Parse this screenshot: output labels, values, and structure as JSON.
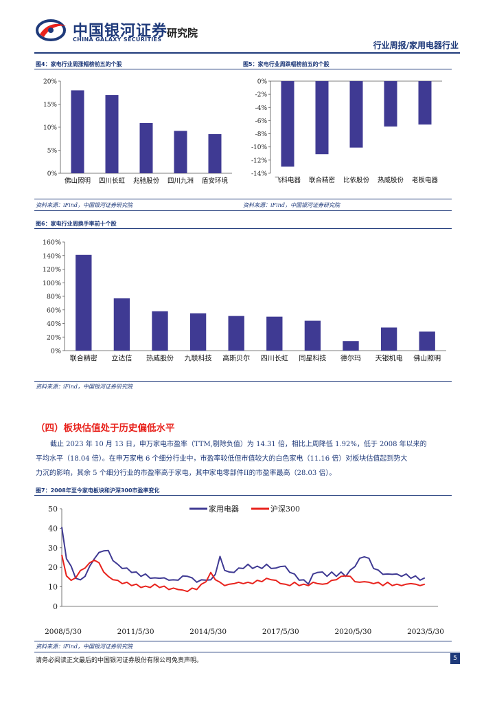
{
  "header": {
    "brand_cn": "中国银河证券",
    "brand_en": "CHINA GALAXY SECURITIES",
    "institute": "研究院",
    "report_type": "行业周报/家用电器行业"
  },
  "figures": {
    "fig4": {
      "title": "图4：家电行业周涨幅榜前五的个股",
      "source": "资料来源：iFind，中国银河证券研究院"
    },
    "fig5": {
      "title": "图5：家电行业周跌幅榜前五的个股",
      "source": "资料来源：iFind，中国银河证券研究院"
    },
    "fig6": {
      "title": "图6：家电行业周换手率前十个股",
      "source": "资料来源：iFind，中国银河证券研究院"
    },
    "fig7": {
      "title": "图7：2008年至今家电板块和沪深300市盈率变化",
      "source": "资料来源：iFind，中国银河证券研究院"
    }
  },
  "section": {
    "heading": "（四）板块估值处于历史偏低水平",
    "para_lines": [
      "截止 2023 年 10 月 13 日，申万家电市盈率（TTM,剔除负值）为 14.31 倍，相比上周降低 1.92%，低于 2008 年以来的",
      "平均水平（18.04 倍）。在申万家电 6 个细分行业中，市盈率较低但市值较大的白色家电（11.16 倍）对板块估值起到势大",
      "力沉的影响，其余 5 个细分行业的市盈率高于家电，其中家电零部件II的市盈率最高（28.03 倍）。"
    ]
  },
  "footer": {
    "disclaimer": "请务必阅读正文最后的中国银河证券股份有限公司免责声明。",
    "page_number": "5"
  },
  "colors": {
    "bar": "#3f3a93",
    "line_home": "#3f3a93",
    "line_hs300": "#e8221c",
    "accent": "#1f3a7a"
  },
  "chart_data": [
    {
      "id": "fig4",
      "type": "bar",
      "categories": [
        "佛山照明",
        "四川长虹",
        "兆驰股份",
        "四川九洲",
        "盾安环境"
      ],
      "values": [
        18.0,
        17.0,
        10.9,
        9.2,
        8.5
      ],
      "ylim": [
        0,
        20
      ],
      "yticks": [
        0,
        5,
        10,
        15,
        20
      ],
      "ytick_labels": [
        "0%",
        "5%",
        "10%",
        "15%",
        "20%"
      ]
    },
    {
      "id": "fig5",
      "type": "bar",
      "categories": [
        "飞科电器",
        "联合精密",
        "比依股份",
        "热威股份",
        "老板电器"
      ],
      "values": [
        -13.0,
        -11.1,
        -10.1,
        -6.9,
        -6.6
      ],
      "ylim": [
        -14,
        0
      ],
      "yticks": [
        0,
        -2,
        -4,
        -6,
        -8,
        -10,
        -12,
        -14
      ],
      "ytick_labels": [
        "0%",
        "-2%",
        "-4%",
        "-6%",
        "-8%",
        "-10%",
        "-12%",
        "-14%"
      ]
    },
    {
      "id": "fig6",
      "type": "bar",
      "categories": [
        "联合精密",
        "立达信",
        "热威股份",
        "九联科技",
        "高斯贝尔",
        "四川长虹",
        "同星科技",
        "德尔玛",
        "天银机电",
        "佛山照明"
      ],
      "values": [
        141,
        77,
        58,
        55,
        51,
        50,
        44,
        14,
        34,
        28
      ],
      "ylim": [
        0,
        160
      ],
      "yticks": [
        0,
        20,
        40,
        60,
        80,
        100,
        120,
        140,
        160
      ],
      "ytick_labels": [
        "0%",
        "20%",
        "40%",
        "60%",
        "80%",
        "100%",
        "120%",
        "140%",
        "160%"
      ]
    },
    {
      "id": "fig7",
      "type": "line",
      "x_labels": [
        "2008/5/30",
        "2011/5/30",
        "2014/5/30",
        "2017/5/30",
        "2020/5/30",
        "2023/5/30"
      ],
      "ylim": [
        0,
        50
      ],
      "yticks": [
        0,
        10,
        20,
        30,
        40,
        50
      ],
      "ytick_labels": [
        "0",
        "10",
        "20",
        "30",
        "40",
        "50"
      ],
      "series": [
        {
          "name": "家用电器",
          "color": "#3f3a93",
          "values": [
            40,
            25,
            20,
            15,
            13,
            16,
            20,
            25,
            27,
            29,
            28,
            24,
            21,
            20,
            19,
            18,
            17,
            16,
            16,
            15,
            14,
            15,
            14,
            14,
            13,
            14,
            15,
            16,
            14,
            13,
            13,
            14,
            13,
            17,
            25,
            19,
            17,
            18,
            19,
            20,
            21,
            20,
            20,
            20,
            21,
            20,
            19,
            21,
            20,
            18,
            16,
            14,
            13,
            12,
            16,
            18,
            17,
            16,
            17,
            16,
            17,
            16,
            18,
            21,
            24,
            26,
            24,
            20,
            18,
            17,
            16,
            17,
            16,
            16,
            16,
            15,
            15,
            14,
            14
          ]
        },
        {
          "name": "沪深300",
          "color": "#e8221c",
          "values": [
            26,
            16,
            13,
            15,
            18,
            20,
            22,
            24,
            22,
            18,
            15,
            14,
            13,
            12,
            12,
            11,
            11,
            10,
            10,
            10,
            11,
            10,
            10,
            9,
            9,
            9,
            8,
            8,
            9,
            9,
            11,
            13,
            17,
            14,
            12,
            11,
            11,
            12,
            12,
            12,
            12,
            12,
            13,
            13,
            14,
            14,
            13,
            12,
            11,
            11,
            12,
            11,
            11,
            11,
            12,
            12,
            11,
            12,
            13,
            14,
            15,
            16,
            15,
            13,
            12,
            13,
            12,
            12,
            12,
            11,
            12,
            11,
            11,
            11,
            11,
            12,
            11,
            11,
            11
          ]
        }
      ]
    }
  ]
}
